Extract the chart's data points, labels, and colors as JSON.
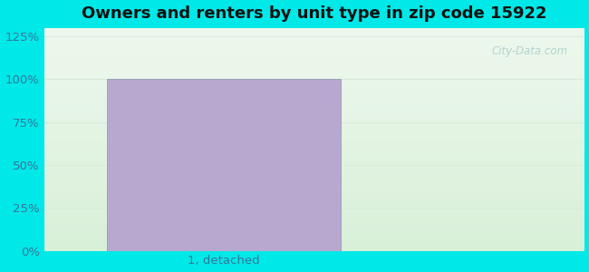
{
  "title": "Owners and renters by unit type in zip code 15922",
  "categories": [
    "1, detached"
  ],
  "values": [
    100
  ],
  "bar_color": "#b8a8d0",
  "bar_edge_color": "#9090b8",
  "yticks": [
    0,
    25,
    50,
    75,
    100,
    125
  ],
  "ylim": [
    0,
    130
  ],
  "ylabel_format": "{}%",
  "title_fontsize": 13,
  "tick_fontsize": 9.5,
  "watermark": "City-Data.com",
  "outer_bg": "#00e8e8",
  "plot_bg_top": "#e8f5e2",
  "plot_bg_bottom": "#f0faf0",
  "grid_color": "#d8ecd8",
  "tick_color": "#337799"
}
